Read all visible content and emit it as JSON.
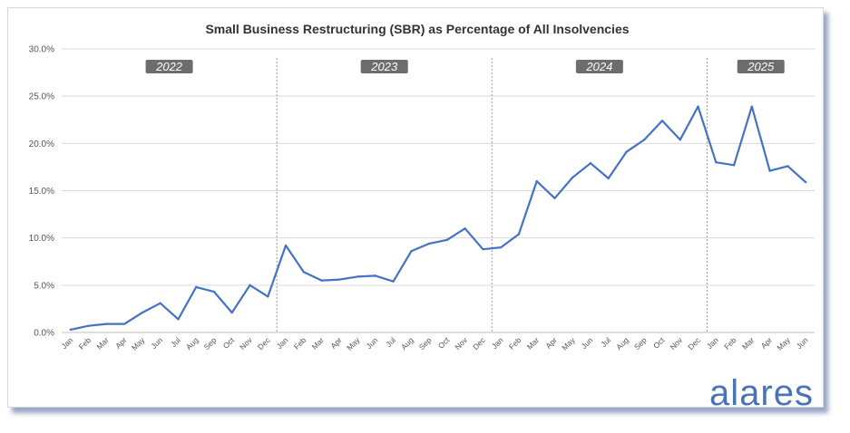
{
  "chart_data": {
    "type": "line",
    "title": "Small Business Restructuring (SBR) as Percentage of All Insolvencies",
    "xlabel": "",
    "ylabel": "",
    "ylim": [
      0,
      30
    ],
    "yticks": [
      "0.0%",
      "5.0%",
      "10.0%",
      "15.0%",
      "20.0%",
      "25.0%",
      "30.0%"
    ],
    "grid": true,
    "legend": "none",
    "line_color": "#4472c4",
    "categories": [
      "Jan",
      "Feb",
      "Mar",
      "Apr",
      "May",
      "Jun",
      "Jul",
      "Aug",
      "Sep",
      "Oct",
      "Nov",
      "Dec",
      "Jan",
      "Feb",
      "Mar",
      "Apr",
      "May",
      "Jun",
      "Jul",
      "Aug",
      "Sep",
      "Oct",
      "Nov",
      "Dec",
      "Jan",
      "Feb",
      "Mar",
      "Apr",
      "May",
      "Jun",
      "Jul",
      "Aug",
      "Sep",
      "Oct",
      "Nov",
      "Dec",
      "Jan",
      "Feb",
      "Mar",
      "Apr",
      "May",
      "Jun"
    ],
    "series": [
      {
        "values": [
          0.3,
          0.7,
          0.9,
          0.9,
          2.1,
          3.1,
          1.4,
          4.8,
          4.3,
          2.1,
          5.0,
          3.8,
          9.2,
          6.4,
          5.5,
          5.6,
          5.9,
          6.0,
          5.4,
          8.6,
          9.4,
          9.8,
          11.0,
          8.8,
          9.0,
          10.4,
          16.0,
          14.2,
          16.4,
          17.9,
          16.3,
          19.1,
          20.4,
          22.4,
          20.4,
          23.9,
          18.0,
          17.7,
          23.9,
          17.1,
          17.6,
          15.9
        ]
      }
    ],
    "years": [
      {
        "label": "2022",
        "start_index": 0
      },
      {
        "label": "2023",
        "start_index": 12
      },
      {
        "label": "2024",
        "start_index": 24
      },
      {
        "label": "2025",
        "start_index": 36
      }
    ],
    "logo_text": "alares"
  }
}
